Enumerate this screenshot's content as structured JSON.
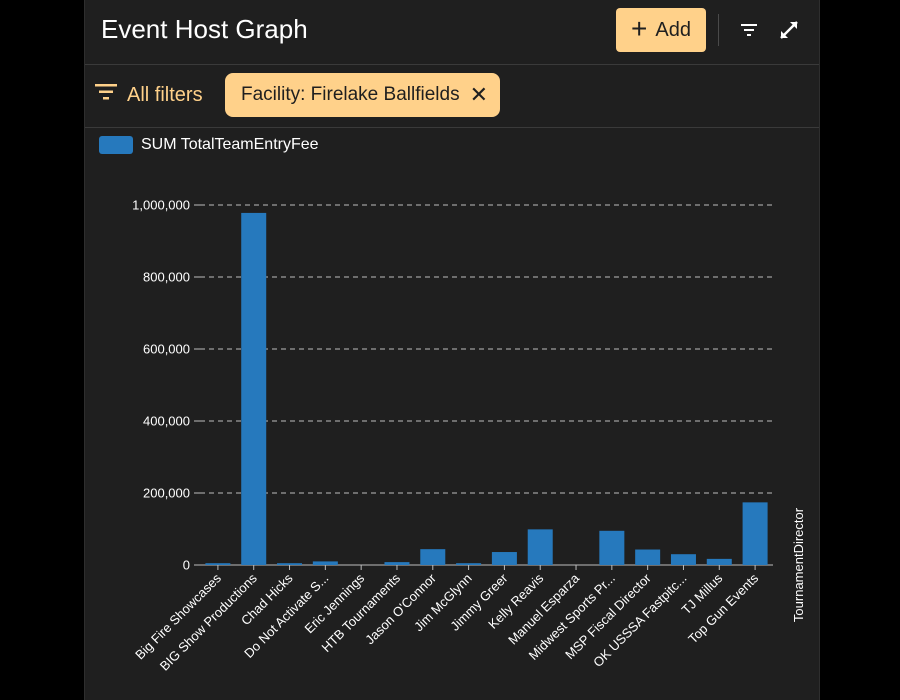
{
  "header": {
    "title": "Event Host Graph",
    "add_label": "Add",
    "add_icon": "plus-icon",
    "filter_icon": "filter-lines-icon",
    "expand_icon": "expand-icon"
  },
  "filters": {
    "all_label": "All filters",
    "chip_label": "Facility: Firelake Ballfields"
  },
  "colors": {
    "accent": "#ffd18a",
    "bar": "#2679bd",
    "background": "#1f1f1f"
  },
  "chart_data": {
    "type": "bar",
    "categories": [
      "Big Fire Showcases",
      "BIG Show Productions",
      "Chad Hicks",
      "Do Not Activate S...",
      "Eric Jennings",
      "HTB Tournaments",
      "Jason O'Connor",
      "Jim McGlynn",
      "Jimmy Greer",
      "Kelly Reavis",
      "Manuel Esparza",
      "Midwest Sports Pr...",
      "MSP Fiscal Director",
      "OK USSSA Fastpitc...",
      "TJ Millus",
      "Top Gun Events"
    ],
    "series": [
      {
        "name": "SUM TotalTeamEntryFee",
        "values": [
          5000,
          978000,
          5000,
          10000,
          0,
          8000,
          44000,
          5000,
          36000,
          99000,
          0,
          95000,
          43000,
          30000,
          17000,
          174000
        ]
      }
    ],
    "xlabel": "TournamentDirector",
    "ylabel": "",
    "ylim": [
      0,
      1000000
    ],
    "yticks": [
      0,
      200000,
      400000,
      600000,
      800000,
      1000000
    ],
    "ytick_labels": [
      "0",
      "200,000",
      "400,000",
      "600,000",
      "800,000",
      "1,000,000"
    ],
    "grid": true,
    "legend": "top-left"
  }
}
